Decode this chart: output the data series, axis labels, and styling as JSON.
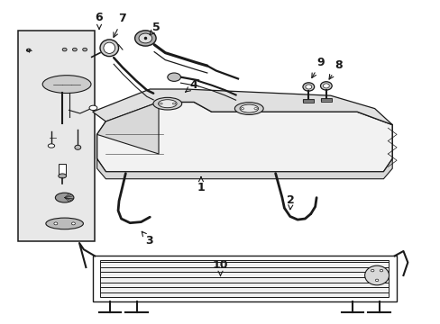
{
  "bg_color": "#ffffff",
  "line_color": "#1a1a1a",
  "box_fill": "#e8e8e8",
  "tank_fill": "#f2f2f2",
  "label_positions": {
    "1": [
      0.455,
      0.58,
      0.455,
      0.545
    ],
    "2": [
      0.66,
      0.62,
      0.65,
      0.648
    ],
    "3": [
      0.34,
      0.74,
      0.33,
      0.71
    ],
    "4": [
      0.44,
      0.265,
      0.42,
      0.29
    ],
    "5": [
      0.355,
      0.088,
      0.34,
      0.118
    ],
    "6": [
      0.225,
      0.055,
      0.225,
      0.095
    ],
    "7": [
      0.28,
      0.06,
      0.265,
      0.115
    ],
    "8": [
      0.765,
      0.205,
      0.757,
      0.24
    ],
    "9": [
      0.726,
      0.195,
      0.718,
      0.235
    ],
    "10": [
      0.5,
      0.82,
      0.5,
      0.852
    ]
  }
}
